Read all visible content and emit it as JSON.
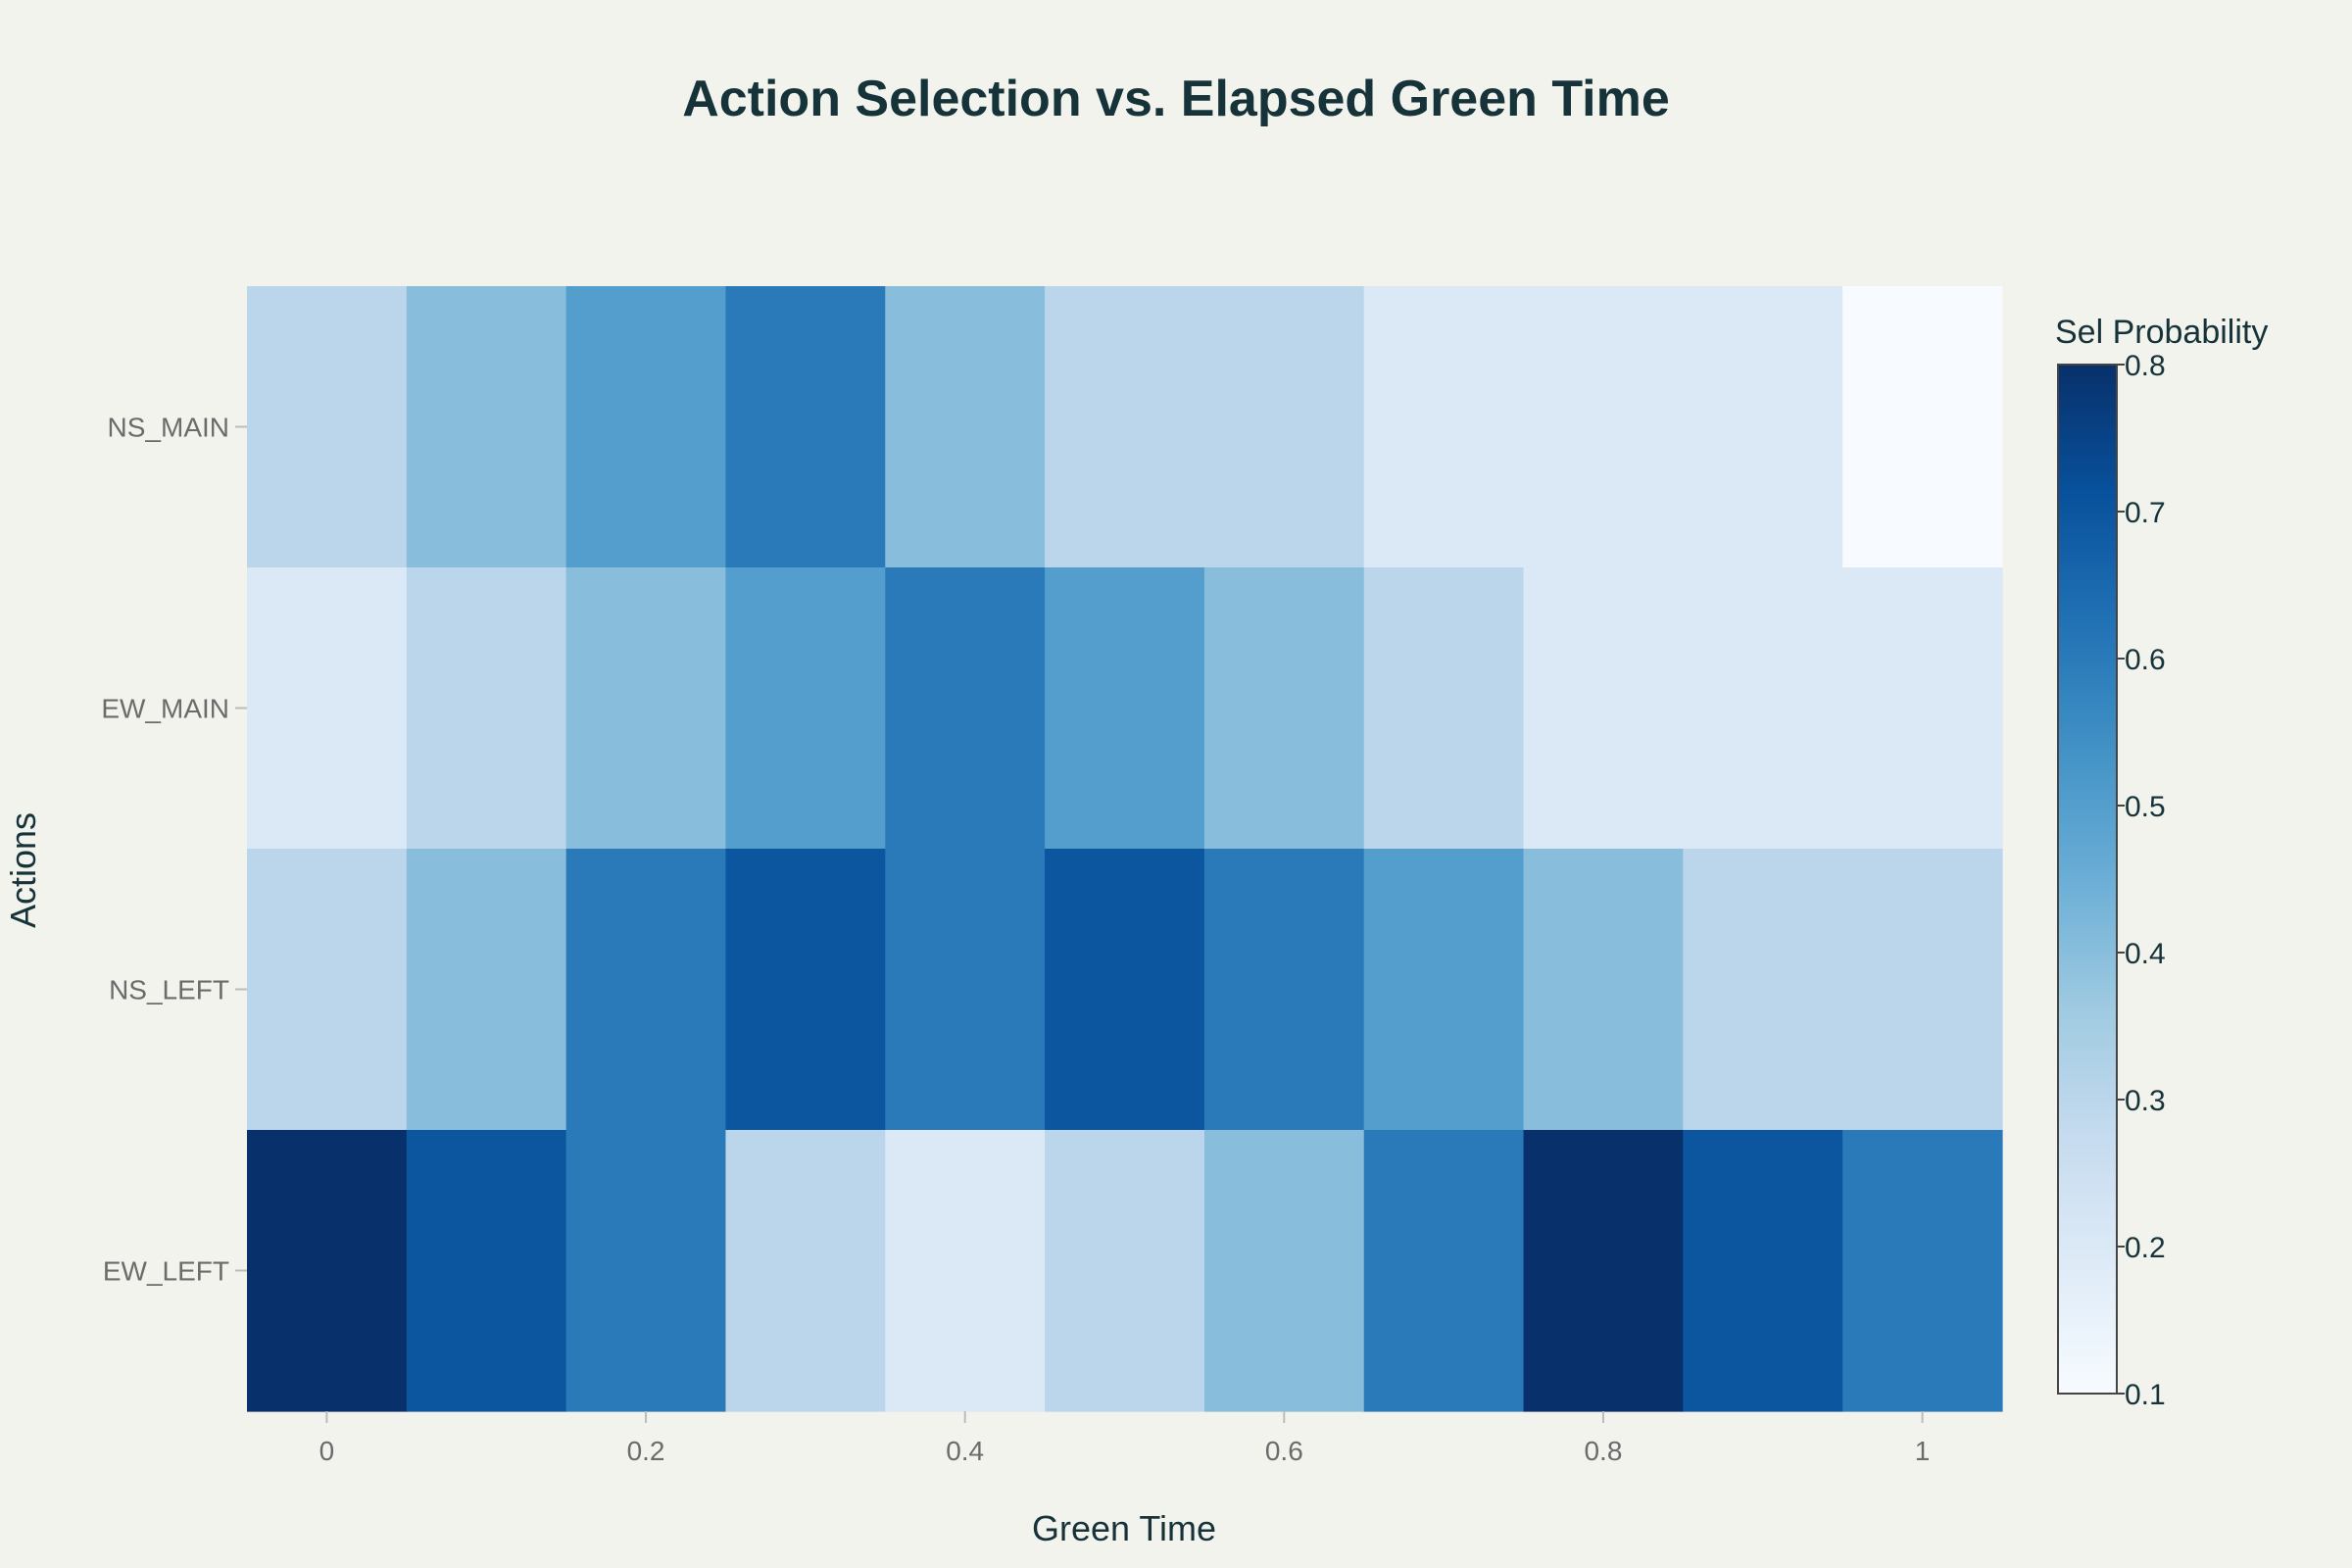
{
  "chart_data": {
    "type": "heatmap",
    "title": "Action Selection vs. Elapsed Green Time",
    "xlabel": "Green Time",
    "ylabel": "Actions",
    "x": [
      0,
      0.1,
      0.2,
      0.3,
      0.4,
      0.5,
      0.6,
      0.7,
      0.8,
      0.9,
      1.0
    ],
    "x_tick_labels": [
      "0",
      "0.2",
      "0.4",
      "0.6",
      "0.8",
      "1"
    ],
    "x_tick_values": [
      0,
      0.2,
      0.4,
      0.6,
      0.8,
      1.0
    ],
    "y": [
      "NS_MAIN",
      "EW_MAIN",
      "NS_LEFT",
      "EW_LEFT"
    ],
    "z": [
      [
        0.3,
        0.4,
        0.5,
        0.6,
        0.4,
        0.3,
        0.3,
        0.2,
        0.2,
        0.2,
        0.1
      ],
      [
        0.2,
        0.3,
        0.4,
        0.5,
        0.6,
        0.5,
        0.4,
        0.3,
        0.2,
        0.2,
        0.2
      ],
      [
        0.3,
        0.4,
        0.6,
        0.7,
        0.6,
        0.7,
        0.6,
        0.5,
        0.4,
        0.3,
        0.3
      ],
      [
        0.8,
        0.7,
        0.6,
        0.3,
        0.2,
        0.3,
        0.4,
        0.6,
        0.8,
        0.7,
        0.6
      ]
    ],
    "colorscale": "Blues",
    "colorbar": {
      "title": "Sel Probability",
      "min": 0.1,
      "max": 0.8,
      "tick_values": [
        0.1,
        0.2,
        0.3,
        0.4,
        0.5,
        0.6,
        0.7,
        0.8
      ],
      "tick_labels": [
        "0.1",
        "0.2",
        "0.3",
        "0.4",
        "0.5",
        "0.6",
        "0.7",
        "0.8"
      ]
    },
    "grid": false
  },
  "colors": {
    "background": "#f3f3ee",
    "text": "#17333a",
    "tick_text": "#6b6b6b"
  }
}
